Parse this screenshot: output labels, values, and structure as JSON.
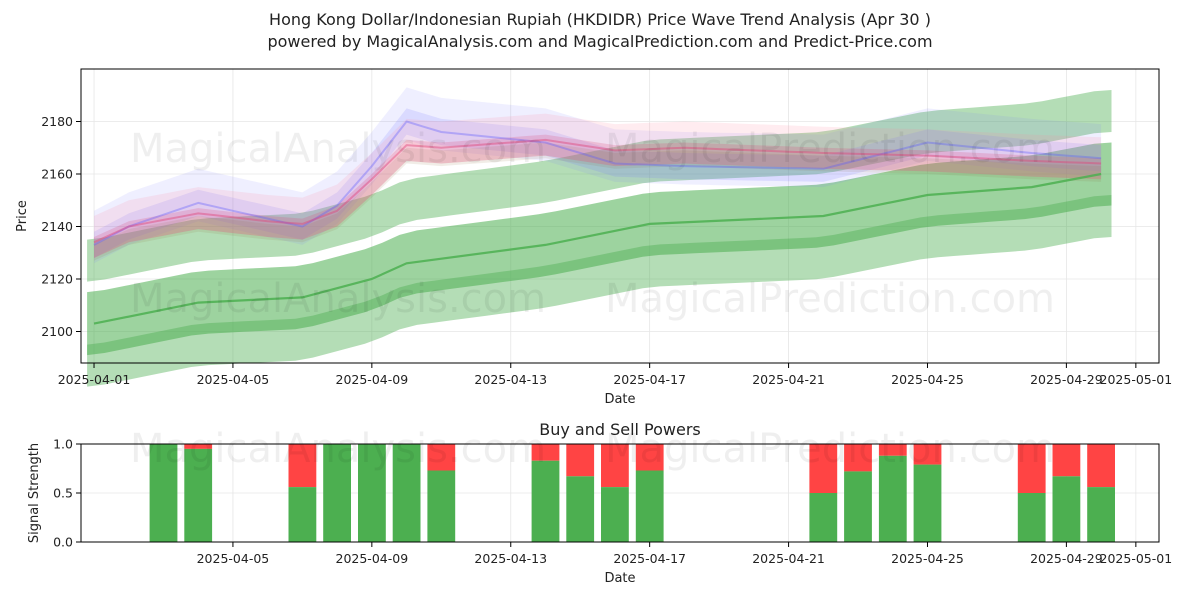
{
  "title_line1": "Hong Kong Dollar/Indonesian Rupiah (HKDIDR) Price Wave Trend Analysis (Apr 30 )",
  "title_line2": "powered by MagicalAnalysis.com and MagicalPrediction.com and Predict-Price.com",
  "watermarks": [
    "MagicalAnalysis.com",
    "MagicalPrediction.com"
  ],
  "colors": {
    "buy": "#4caf50",
    "sell": "#ff4444",
    "band": "#4caf50",
    "grid": "#e6e6e6"
  },
  "chart_data": [
    {
      "type": "line",
      "title": "",
      "xlabel": "Date",
      "ylabel": "Price",
      "grid": true,
      "x_ticks": [
        "2025-04-01",
        "2025-04-05",
        "2025-04-09",
        "2025-04-13",
        "2025-04-17",
        "2025-04-21",
        "2025-04-25",
        "2025-04-29",
        "2025-05-01"
      ],
      "y_ticks": [
        2100,
        2120,
        2140,
        2160,
        2180
      ],
      "ylim": [
        2088,
        2200
      ],
      "xlim": [
        "2025-03-31T15:00",
        "2025-05-01T16:00"
      ],
      "series": [
        {
          "role": "trend_line",
          "color": "#4caf50",
          "x": [
            "2025-04-01",
            "2025-04-04",
            "2025-04-07",
            "2025-04-09",
            "2025-04-10",
            "2025-04-14",
            "2025-04-17",
            "2025-04-22",
            "2025-04-25",
            "2025-04-28",
            "2025-04-30"
          ],
          "y": [
            2103,
            2111,
            2113,
            2120,
            2126,
            2133,
            2141,
            2144,
            2152,
            2155,
            2160
          ]
        },
        {
          "role": "purple_wave",
          "color": "#6b6bff",
          "x": [
            "2025-04-01",
            "2025-04-02",
            "2025-04-04",
            "2025-04-06",
            "2025-04-07",
            "2025-04-08",
            "2025-04-09",
            "2025-04-10",
            "2025-04-11",
            "2025-04-14",
            "2025-04-16",
            "2025-04-18",
            "2025-04-22",
            "2025-04-25",
            "2025-04-28",
            "2025-04-30"
          ],
          "y": [
            2133,
            2140,
            2149,
            2143,
            2140,
            2148,
            2163,
            2180,
            2176,
            2172,
            2164,
            2163,
            2162,
            2172,
            2168,
            2166
          ]
        },
        {
          "role": "red_wave",
          "color": "#ff7088",
          "x": [
            "2025-04-01",
            "2025-04-02",
            "2025-04-04",
            "2025-04-06",
            "2025-04-07",
            "2025-04-08",
            "2025-04-09",
            "2025-04-10",
            "2025-04-11",
            "2025-04-14",
            "2025-04-16",
            "2025-04-18",
            "2025-04-22",
            "2025-04-25",
            "2025-04-28",
            "2025-04-30"
          ],
          "y": [
            2134,
            2140,
            2145,
            2142,
            2141,
            2146,
            2158,
            2171,
            2170,
            2173,
            2169,
            2170,
            2168,
            2167,
            2165,
            2164
          ]
        }
      ]
    },
    {
      "type": "bar",
      "title": "Buy and Sell Powers",
      "xlabel": "Date",
      "ylabel": "Signal Strength",
      "ylim": [
        0,
        1.0
      ],
      "y_ticks": [
        0.0,
        0.5,
        1.0
      ],
      "x_ticks": [
        "2025-04-05",
        "2025-04-09",
        "2025-04-13",
        "2025-04-17",
        "2025-04-21",
        "2025-04-25",
        "2025-04-29",
        "2025-05-01"
      ],
      "grid": true,
      "series": [
        {
          "name": "Buy",
          "color": "#4caf50"
        },
        {
          "name": "Sell",
          "color": "#ff4444"
        }
      ],
      "bars": [
        {
          "date": "2025-04-03",
          "buy": 1.0
        },
        {
          "date": "2025-04-04",
          "buy": 0.95
        },
        {
          "date": "2025-04-07",
          "buy": 0.56
        },
        {
          "date": "2025-04-08",
          "buy": 1.0
        },
        {
          "date": "2025-04-09",
          "buy": 1.0
        },
        {
          "date": "2025-04-10",
          "buy": 1.0
        },
        {
          "date": "2025-04-11",
          "buy": 0.73
        },
        {
          "date": "2025-04-14",
          "buy": 0.83
        },
        {
          "date": "2025-04-15",
          "buy": 0.67
        },
        {
          "date": "2025-04-16",
          "buy": 0.56
        },
        {
          "date": "2025-04-17",
          "buy": 0.73
        },
        {
          "date": "2025-04-22",
          "buy": 0.5
        },
        {
          "date": "2025-04-23",
          "buy": 0.72
        },
        {
          "date": "2025-04-24",
          "buy": 0.88
        },
        {
          "date": "2025-04-25",
          "buy": 0.79
        },
        {
          "date": "2025-04-28",
          "buy": 0.5
        },
        {
          "date": "2025-04-29",
          "buy": 0.67
        },
        {
          "date": "2025-04-30",
          "buy": 0.56
        }
      ]
    }
  ]
}
